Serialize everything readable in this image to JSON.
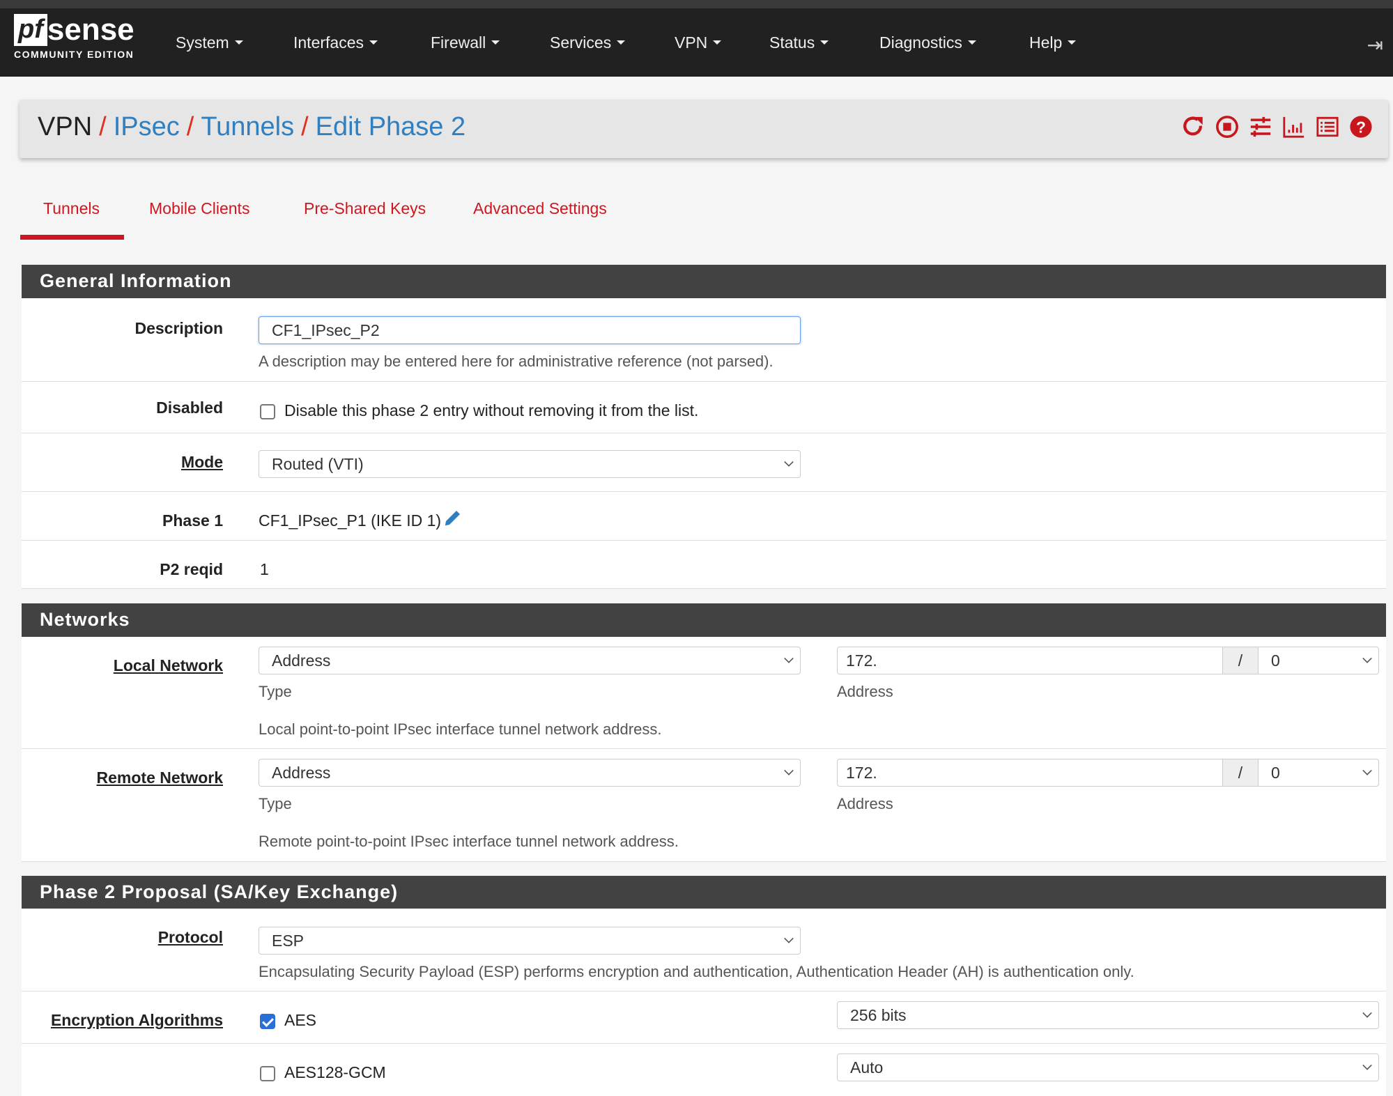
{
  "nav": {
    "logo_main": "pfsense",
    "logo_sub": "COMMUNITY EDITION",
    "items": [
      "System",
      "Interfaces",
      "Firewall",
      "Services",
      "VPN",
      "Status",
      "Diagnostics",
      "Help"
    ]
  },
  "breadcrumb": {
    "root": "VPN",
    "items": [
      "IPsec",
      "Tunnels",
      "Edit Phase 2"
    ],
    "separator": "/"
  },
  "header_icons": [
    "reload-icon",
    "stop-icon",
    "settings-sliders-icon",
    "chart-icon",
    "list-icon",
    "help-icon"
  ],
  "tabs": [
    {
      "label": "Tunnels",
      "active": true
    },
    {
      "label": "Mobile Clients"
    },
    {
      "label": "Pre-Shared Keys"
    },
    {
      "label": "Advanced Settings"
    }
  ],
  "general": {
    "title": "General Information",
    "description": {
      "label": "Description",
      "value": "CF1_IPsec_P2",
      "help": "A description may be entered here for administrative reference (not parsed)."
    },
    "disabled": {
      "label": "Disabled",
      "text": "Disable this phase 2 entry without removing it from the list.",
      "checked": false
    },
    "mode": {
      "label": "Mode",
      "value": "Routed (VTI)"
    },
    "phase1": {
      "label": "Phase 1",
      "value": "CF1_IPsec_P1 (IKE ID 1)"
    },
    "reqid": {
      "label": "P2 reqid",
      "value": "1"
    }
  },
  "networks": {
    "title": "Networks",
    "local": {
      "label": "Local Network",
      "type": "Address",
      "type_label": "Type",
      "address": "172.",
      "slash": "/",
      "mask": "0",
      "address_label": "Address",
      "help": "Local point-to-point IPsec interface tunnel network address."
    },
    "remote": {
      "label": "Remote Network",
      "type": "Address",
      "type_label": "Type",
      "address": "172.",
      "slash": "/",
      "mask": "0",
      "address_label": "Address",
      "help": "Remote point-to-point IPsec interface tunnel network address."
    }
  },
  "proposal": {
    "title": "Phase 2 Proposal (SA/Key Exchange)",
    "protocol": {
      "label": "Protocol",
      "value": "ESP",
      "help": "Encapsulating Security Payload (ESP) performs encryption and authentication, Authentication Header (AH) is authentication only."
    },
    "encryption": {
      "label": "Encryption Algorithms",
      "algos": [
        {
          "name": "AES",
          "checked": true,
          "keylen": "256 bits"
        },
        {
          "name": "AES128-GCM",
          "checked": false,
          "keylen": "Auto"
        }
      ]
    }
  },
  "colors": {
    "accent": "#d0161f",
    "link": "#2f7fc1",
    "navbar": "#212121",
    "panel_header": "#424242"
  }
}
